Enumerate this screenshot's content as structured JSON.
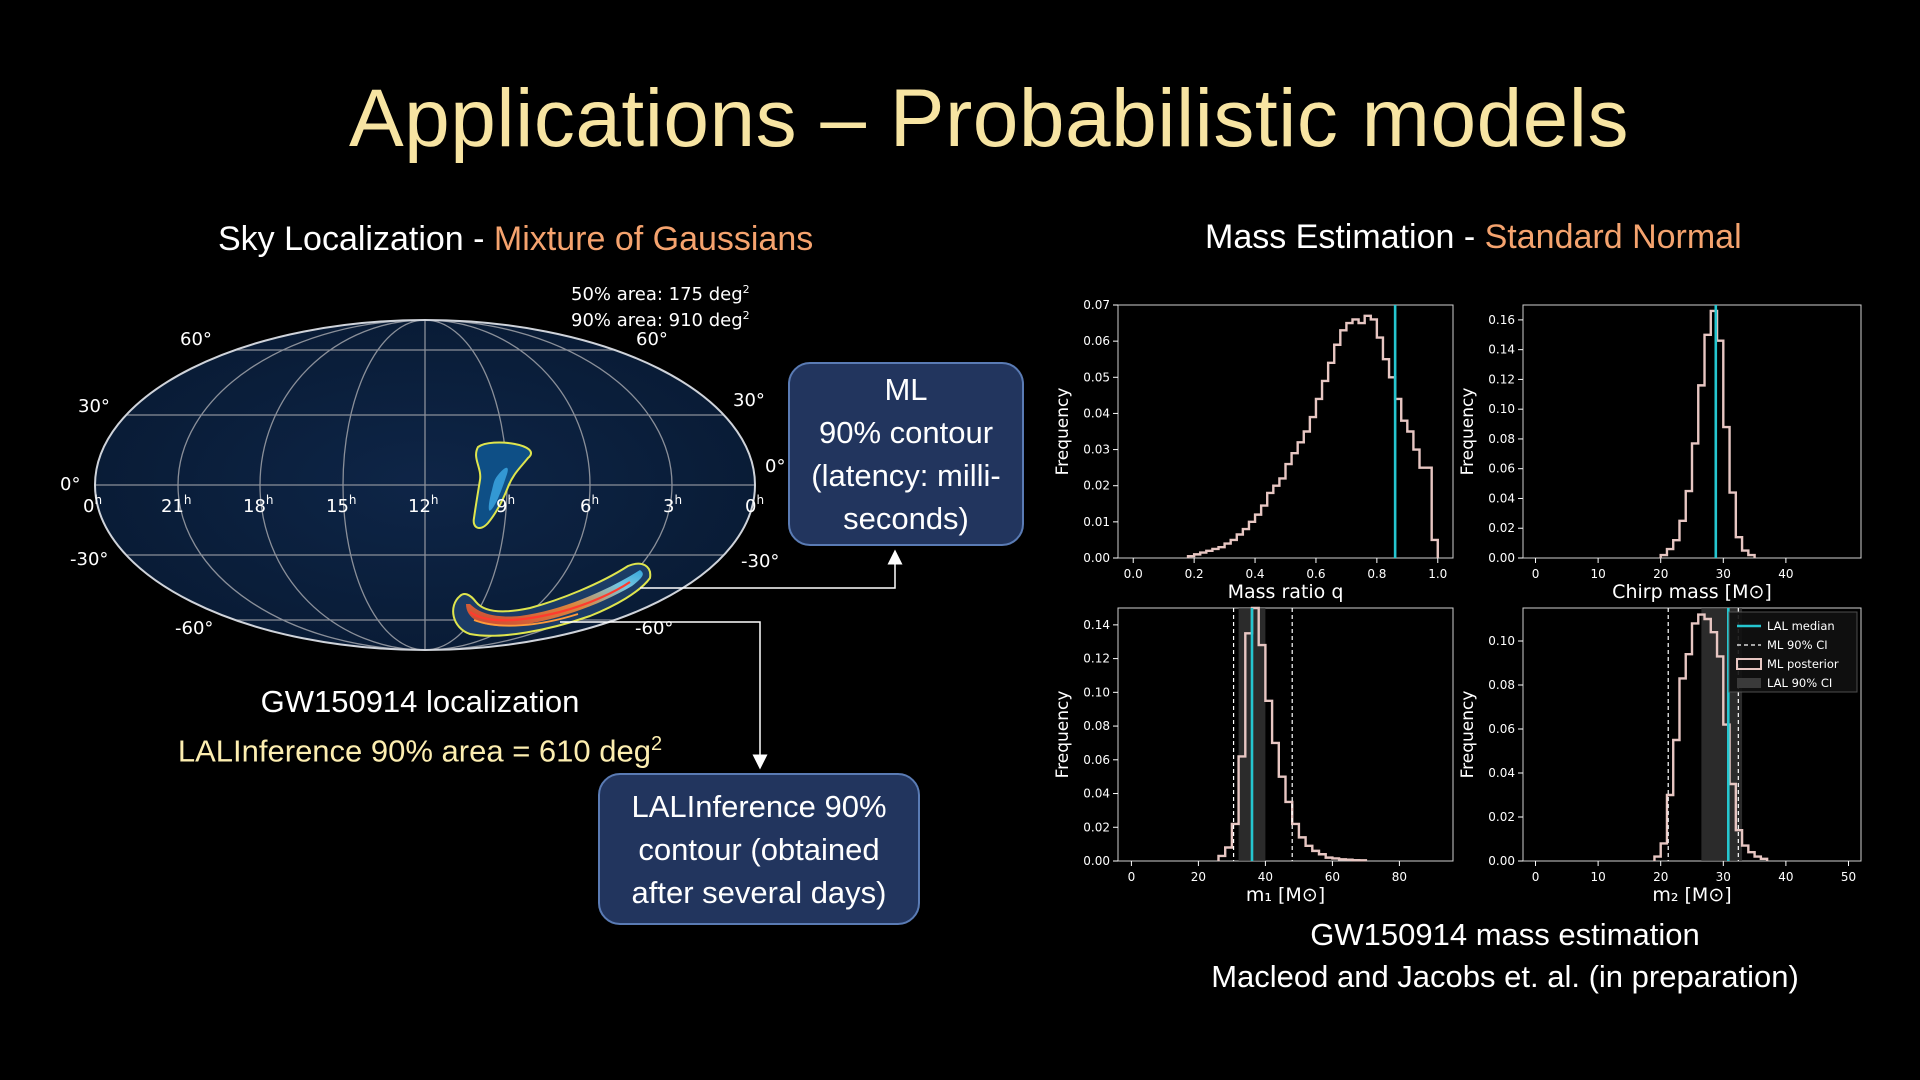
{
  "slide": {
    "title": "Applications – Probabilistic models",
    "left_heading": {
      "prefix": "Sky Localization - ",
      "method": "Mixture of Gaussians"
    },
    "right_heading": {
      "prefix": "Mass Estimation - ",
      "method": "Standard Normal"
    },
    "left_caption": {
      "line1": "GW150914 localization",
      "line2_prefix": "LALInference 90% area = 610 deg",
      "line2_sup": "2"
    },
    "right_caption": {
      "line1": "GW150914 mass estimation",
      "line2": "Macleod and Jacobs et. al. (in preparation)"
    },
    "callout_ml": {
      "line1": "ML",
      "line2": "90% contour",
      "line3": "(latency: milli-",
      "line4": "seconds)"
    },
    "callout_lal": {
      "line1": "LALInference 90%",
      "line2": "contour (obtained",
      "line3": "after several days)"
    }
  },
  "skymap": {
    "area_50_prefix": "50% area: 175 deg",
    "area_90_prefix": "90% area: 910 deg",
    "area_sup": "2",
    "dec_labels_left": [
      "60°",
      "30°",
      "0°",
      "-30°",
      "-60°"
    ],
    "dec_labels_right": [
      "60°",
      "30°",
      "0°",
      "-30°",
      "-60°"
    ],
    "ra_labels": [
      "0",
      "21",
      "18",
      "15",
      "12",
      "9",
      "6",
      "3",
      "0"
    ],
    "ra_sup": "h"
  },
  "colors": {
    "title": "#f7e4a2",
    "accent": "#f5a36e",
    "histogram": "#e7c6c2",
    "median_line": "#25c6d0",
    "callout_bg": "#22355e"
  },
  "chart_data": [
    {
      "type": "histogram",
      "xlabel": "Mass ratio q",
      "ylabel": "Frequency",
      "xlim": [
        -0.05,
        1.05
      ],
      "ylim": [
        0,
        0.07
      ],
      "xticks": [
        0.0,
        0.2,
        0.4,
        0.6,
        0.8,
        1.0
      ],
      "xtick_labels": [
        "0.0",
        "0.2",
        "0.4",
        "0.6",
        "0.8",
        "1.0"
      ],
      "yticks": [
        0.0,
        0.01,
        0.02,
        0.03,
        0.04,
        0.05,
        0.06,
        0.07
      ],
      "ytick_labels": [
        "0.00",
        "0.01",
        "0.02",
        "0.03",
        "0.04",
        "0.05",
        "0.06",
        "0.07"
      ],
      "bin_edges": [
        0.18,
        0.2,
        0.22,
        0.24,
        0.26,
        0.28,
        0.3,
        0.32,
        0.34,
        0.36,
        0.38,
        0.4,
        0.42,
        0.44,
        0.46,
        0.48,
        0.5,
        0.52,
        0.54,
        0.56,
        0.58,
        0.6,
        0.62,
        0.64,
        0.66,
        0.68,
        0.7,
        0.72,
        0.74,
        0.76,
        0.78,
        0.8,
        0.82,
        0.84,
        0.86,
        0.88,
        0.9,
        0.92,
        0.94,
        0.96,
        0.98,
        1.0
      ],
      "values": [
        0.0005,
        0.001,
        0.0015,
        0.002,
        0.0025,
        0.003,
        0.004,
        0.005,
        0.0065,
        0.008,
        0.01,
        0.012,
        0.0145,
        0.018,
        0.02,
        0.022,
        0.026,
        0.029,
        0.032,
        0.035,
        0.039,
        0.044,
        0.049,
        0.054,
        0.059,
        0.063,
        0.065,
        0.066,
        0.065,
        0.067,
        0.066,
        0.061,
        0.055,
        0.05,
        0.044,
        0.038,
        0.035,
        0.03,
        0.025,
        0.025,
        0.005
      ],
      "median": 0.86
    },
    {
      "type": "histogram",
      "xlabel": "Chirp mass [M⊙]",
      "ylabel": "Frequency",
      "xlim": [
        -2,
        52
      ],
      "ylim": [
        0,
        0.17
      ],
      "xticks": [
        0,
        10,
        20,
        30,
        40
      ],
      "xtick_labels": [
        "0",
        "10",
        "20",
        "30",
        "40"
      ],
      "yticks": [
        0.0,
        0.02,
        0.04,
        0.06,
        0.08,
        0.1,
        0.12,
        0.14,
        0.16
      ],
      "ytick_labels": [
        "0.00",
        "0.02",
        "0.04",
        "0.06",
        "0.08",
        "0.10",
        "0.12",
        "0.14",
        "0.16"
      ],
      "bin_edges": [
        20,
        21,
        22,
        23,
        24,
        25,
        26,
        27,
        28,
        29,
        30,
        31,
        32,
        33,
        34,
        35
      ],
      "values": [
        0.002,
        0.006,
        0.012,
        0.025,
        0.045,
        0.077,
        0.116,
        0.15,
        0.166,
        0.146,
        0.088,
        0.044,
        0.014,
        0.005,
        0.002
      ],
      "median": 28.8
    },
    {
      "type": "histogram",
      "xlabel": "m₁ [M⊙]",
      "ylabel": "Frequency",
      "xlim": [
        -4,
        96
      ],
      "ylim": [
        0,
        0.15
      ],
      "xticks": [
        0,
        20,
        40,
        60,
        80
      ],
      "xtick_labels": [
        "0",
        "20",
        "40",
        "60",
        "80"
      ],
      "yticks": [
        0.0,
        0.02,
        0.04,
        0.06,
        0.08,
        0.1,
        0.12,
        0.14
      ],
      "ytick_labels": [
        "0.00",
        "0.02",
        "0.04",
        "0.06",
        "0.08",
        "0.10",
        "0.12",
        "0.14"
      ],
      "bin_edges": [
        26,
        28,
        30,
        32,
        34,
        36,
        38,
        40,
        42,
        44,
        46,
        48,
        50,
        52,
        54,
        56,
        58,
        60,
        62,
        64,
        66,
        68,
        70
      ],
      "values": [
        0.003,
        0.008,
        0.022,
        0.062,
        0.135,
        0.15,
        0.128,
        0.095,
        0.07,
        0.05,
        0.035,
        0.022,
        0.014,
        0.009,
        0.006,
        0.004,
        0.002,
        0.0015,
        0.001,
        0.0008,
        0.0005,
        0.0004
      ],
      "median": 36,
      "ml_ci": [
        30.5,
        48
      ],
      "lal_ci": [
        32,
        40
      ]
    },
    {
      "type": "histogram",
      "xlabel": "m₂ [M⊙]",
      "ylabel": "Frequency",
      "xlim": [
        -2,
        52
      ],
      "ylim": [
        0,
        0.115
      ],
      "xticks": [
        0,
        10,
        20,
        30,
        40,
        50
      ],
      "xtick_labels": [
        "0",
        "10",
        "20",
        "30",
        "40",
        "50"
      ],
      "yticks": [
        0.0,
        0.02,
        0.04,
        0.06,
        0.08,
        0.1
      ],
      "ytick_labels": [
        "0.00",
        "0.02",
        "0.04",
        "0.06",
        "0.08",
        "0.10"
      ],
      "bin_edges": [
        19,
        20,
        21,
        22,
        23,
        24,
        25,
        26,
        27,
        28,
        29,
        30,
        31,
        32,
        33,
        34,
        35,
        36,
        37
      ],
      "values": [
        0.002,
        0.008,
        0.03,
        0.055,
        0.083,
        0.094,
        0.108,
        0.112,
        0.11,
        0.104,
        0.093,
        0.062,
        0.035,
        0.014,
        0.007,
        0.004,
        0.002,
        0.001
      ],
      "median": 30.8,
      "ml_ci": [
        21.2,
        32.4
      ],
      "lal_ci": [
        26.5,
        33
      ],
      "legend": {
        "position": "upper-right",
        "entries": [
          "LAL median",
          "ML 90% CI",
          "ML posterior",
          "LAL 90% CI"
        ]
      }
    }
  ]
}
